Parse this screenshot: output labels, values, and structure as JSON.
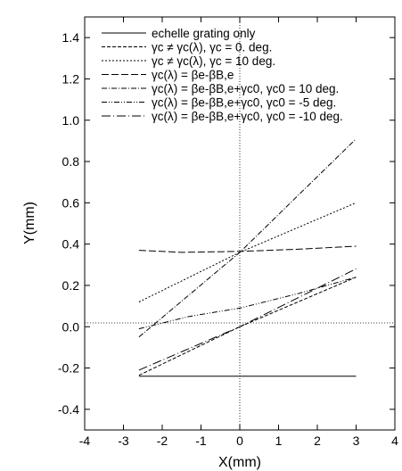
{
  "chart_data": {
    "type": "line",
    "title": "",
    "xlabel": "X(mm)",
    "ylabel": "Y(mm)",
    "xlim": [
      -4,
      4
    ],
    "ylim": [
      -0.5,
      1.5
    ],
    "x_ticks": [
      -4,
      -3,
      -2,
      -1,
      0,
      1,
      2,
      3,
      4
    ],
    "y_ticks": [
      -0.4,
      -0.2,
      0.0,
      0.2,
      0.4,
      0.6,
      0.8,
      1.0,
      1.2,
      1.4
    ],
    "x_tick_labels": [
      "-4",
      "-3",
      "-2",
      "-1",
      "0",
      "1",
      "2",
      "3",
      "4"
    ],
    "y_tick_labels": [
      "-0.4",
      "-0.2",
      "0.0",
      "0.2",
      "0.4",
      "0.6",
      "0.8",
      "1.0",
      "1.2",
      "1.4"
    ],
    "grid": false,
    "reference_lines": {
      "x": 0,
      "y": 0,
      "style": "dotted"
    },
    "legend_position": "top-left",
    "series": [
      {
        "name": "echelle grating only",
        "dash": "solid",
        "x": [
          -2.6,
          3.0
        ],
        "y": [
          -0.24,
          -0.24
        ]
      },
      {
        "name": "γc ≠ γc(λ), γc = 0. deg.",
        "dash": "dash-short",
        "x": [
          -2.6,
          0.0,
          3.0
        ],
        "y": [
          -0.235,
          0.0,
          0.24
        ]
      },
      {
        "name": "γc ≠ γc(λ), γc = 10 deg.",
        "dash": "dash-fine",
        "x": [
          -2.6,
          0.0,
          3.0
        ],
        "y": [
          0.12,
          0.36,
          0.6
        ]
      },
      {
        "name": "γc(λ) = βe-βB,e",
        "dash": "dash-long",
        "x": [
          -2.6,
          -1.5,
          0.0,
          1.5,
          3.0
        ],
        "y": [
          0.37,
          0.36,
          0.365,
          0.375,
          0.39
        ]
      },
      {
        "name": "γc(λ) = βe-βB,e+γc0, γc0 = 10 deg.",
        "dash": "dash-dot",
        "x": [
          -2.6,
          0.0,
          3.0
        ],
        "y": [
          -0.05,
          0.36,
          0.91
        ]
      },
      {
        "name": "γc(λ) = βe-βB,e+γc0, γc0 = -5 deg.",
        "dash": "dash-dot-dot",
        "x": [
          -2.6,
          -1.3,
          0.0,
          1.5,
          3.0
        ],
        "y": [
          -0.01,
          0.05,
          0.09,
          0.16,
          0.24
        ]
      },
      {
        "name": "γc(λ) = βe-βB,e+γc0, γc0 = -10 deg.",
        "dash": "dash-long-dot",
        "x": [
          -2.6,
          0.0,
          3.0
        ],
        "y": [
          -0.21,
          0.0,
          0.28
        ]
      }
    ]
  }
}
